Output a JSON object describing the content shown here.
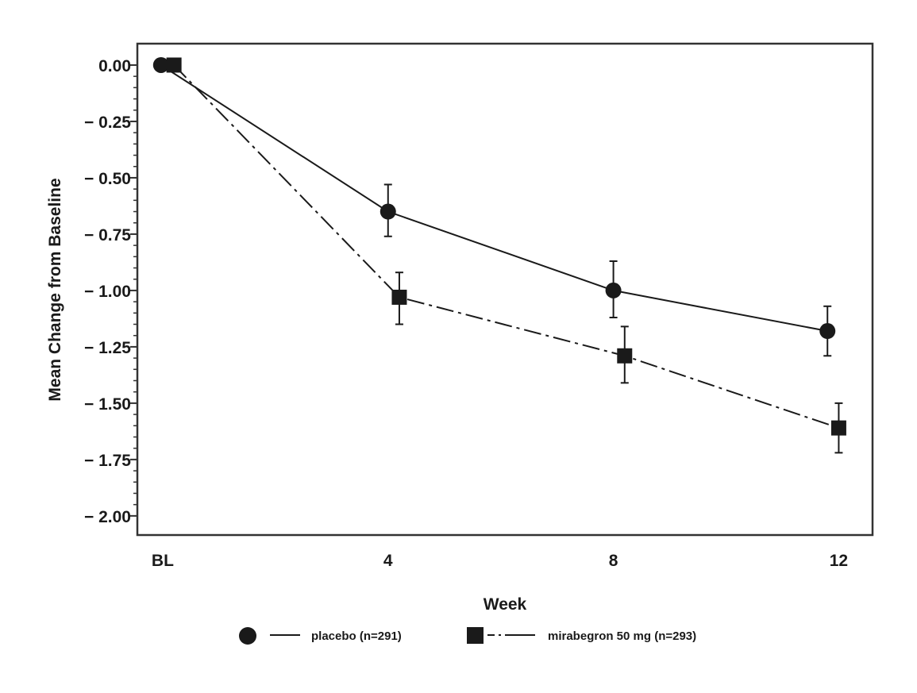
{
  "chart_data": {
    "type": "line",
    "title": "",
    "xlabel": "Week",
    "ylabel": "Mean Change from Baseline",
    "x_ticks": [
      {
        "value": 0,
        "label": "BL"
      },
      {
        "value": 4,
        "label": "4"
      },
      {
        "value": 8,
        "label": "8"
      },
      {
        "value": 12,
        "label": "12"
      }
    ],
    "y_ticks": [
      {
        "value": 0,
        "label": "0.00"
      },
      {
        "value": -0.25,
        "label": "− 0.25"
      },
      {
        "value": -0.5,
        "label": "− 0.50"
      },
      {
        "value": -0.75,
        "label": "− 0.75"
      },
      {
        "value": -1.0,
        "label": "− 1.00"
      },
      {
        "value": -1.25,
        "label": "− 1.25"
      },
      {
        "value": -1.5,
        "label": "− 1.50"
      },
      {
        "value": -1.75,
        "label": "− 1.75"
      },
      {
        "value": -2.0,
        "label": "− 2.00"
      }
    ],
    "y_minor_step": 0.05,
    "xlim": [
      -0.45,
      12.6
    ],
    "ylim": [
      -2.085,
      0.095
    ],
    "grid": false,
    "legend_position": "bottom",
    "series": [
      {
        "name": "placebo (n=291)",
        "marker": "circle",
        "line_style": "solid",
        "color": "#1a1a1a",
        "x": [
          0,
          4,
          8,
          12
        ],
        "y": [
          0.0,
          -0.65,
          -1.0,
          -1.18
        ],
        "err_low": [
          0.0,
          -0.76,
          -1.12,
          -1.29
        ],
        "err_high": [
          0.0,
          -0.53,
          -0.87,
          -1.07
        ]
      },
      {
        "name": "mirabegron 50 mg (n=293)",
        "marker": "square",
        "line_style": "dash-dot",
        "color": "#1a1a1a",
        "x": [
          0,
          4,
          8,
          12
        ],
        "y": [
          0.0,
          -1.03,
          -1.29,
          -1.61
        ],
        "err_low": [
          0.0,
          -1.15,
          -1.41,
          -1.72
        ],
        "err_high": [
          0.0,
          -0.92,
          -1.16,
          -1.5
        ]
      }
    ]
  }
}
